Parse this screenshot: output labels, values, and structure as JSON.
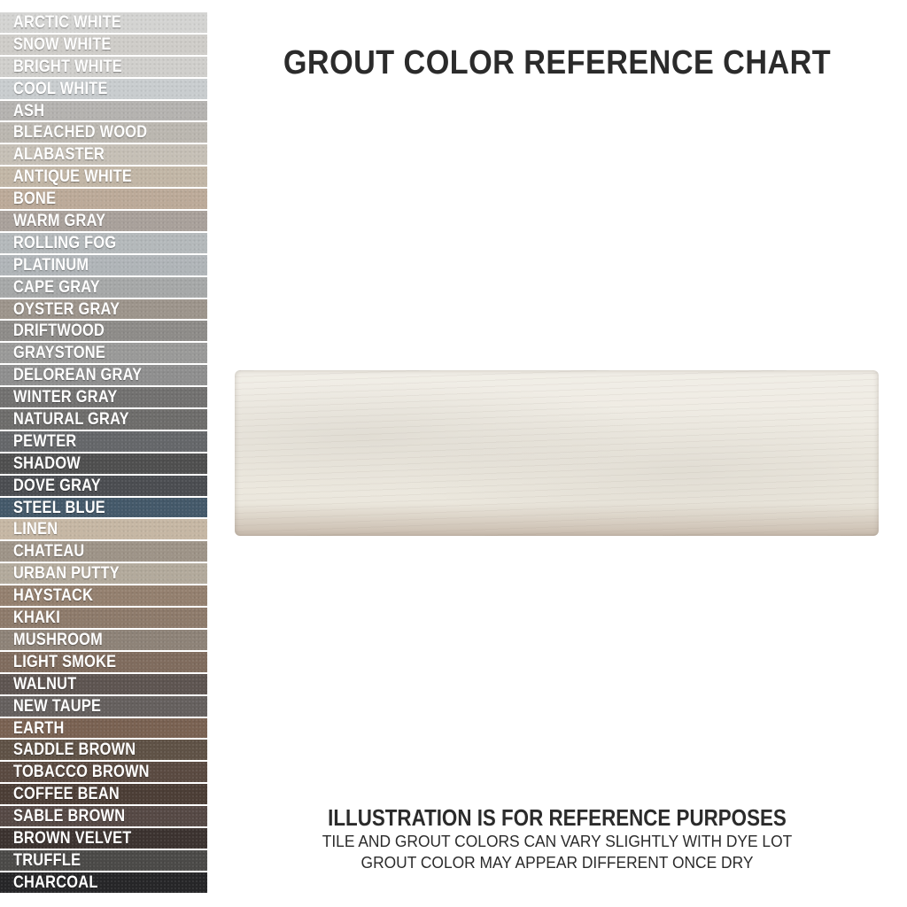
{
  "title": "GROUT COLOR REFERENCE CHART",
  "swatches": [
    {
      "name": "ARCTIC WHITE",
      "color": "#d4d4d2"
    },
    {
      "name": "SNOW WHITE",
      "color": "#cfcdc9"
    },
    {
      "name": "BRIGHT WHITE",
      "color": "#d0cfcc"
    },
    {
      "name": "COOL WHITE",
      "color": "#c9cdcf"
    },
    {
      "name": "ASH",
      "color": "#b5b3b0"
    },
    {
      "name": "BLEACHED WOOD",
      "color": "#bbb7b0"
    },
    {
      "name": "ALABASTER",
      "color": "#c6c0b6"
    },
    {
      "name": "ANTIQUE WHITE",
      "color": "#c2b6a6"
    },
    {
      "name": "BONE",
      "color": "#bcaa99"
    },
    {
      "name": "WARM GRAY",
      "color": "#a9a19b"
    },
    {
      "name": "ROLLING FOG",
      "color": "#b4b9bb"
    },
    {
      "name": "PLATINUM",
      "color": "#b0b5b8"
    },
    {
      "name": "CAPE GRAY",
      "color": "#a6a8a8"
    },
    {
      "name": "OYSTER GRAY",
      "color": "#9d958c"
    },
    {
      "name": "DRIFTWOOD",
      "color": "#8e8c89"
    },
    {
      "name": "GRAYSTONE",
      "color": "#9a9a99"
    },
    {
      "name": "DELOREAN GRAY",
      "color": "#8f8f8f"
    },
    {
      "name": "WINTER GRAY",
      "color": "#727170"
    },
    {
      "name": "NATURAL GRAY",
      "color": "#6e6d6b"
    },
    {
      "name": "PEWTER",
      "color": "#65676a"
    },
    {
      "name": "SHADOW",
      "color": "#4f4f4f"
    },
    {
      "name": "DOVE GRAY",
      "color": "#4b4d51"
    },
    {
      "name": "STEEL BLUE",
      "color": "#44596a"
    },
    {
      "name": "LINEN",
      "color": "#c6b7a4"
    },
    {
      "name": "CHATEAU",
      "color": "#9e9488"
    },
    {
      "name": "URBAN PUTTY",
      "color": "#b3aa9c"
    },
    {
      "name": "HAYSTACK",
      "color": "#94806f"
    },
    {
      "name": "KHAKI",
      "color": "#8e7b6b"
    },
    {
      "name": "MUSHROOM",
      "color": "#8e8378"
    },
    {
      "name": "LIGHT SMOKE",
      "color": "#806c5e"
    },
    {
      "name": "WALNUT",
      "color": "#5e5551"
    },
    {
      "name": "NEW TAUPE",
      "color": "#65605e"
    },
    {
      "name": "EARTH",
      "color": "#7a6252"
    },
    {
      "name": "SADDLE BROWN",
      "color": "#5f5246"
    },
    {
      "name": "TOBACCO BROWN",
      "color": "#5a4a41"
    },
    {
      "name": "COFFEE BEAN",
      "color": "#4c3e36"
    },
    {
      "name": "SABLE BROWN",
      "color": "#564945"
    },
    {
      "name": "BROWN VELVET",
      "color": "#3c3330"
    },
    {
      "name": "TRUFFLE",
      "color": "#4b4a48"
    },
    {
      "name": "CHARCOAL",
      "color": "#262628"
    }
  ],
  "tile": {
    "color": "#ede9e0"
  },
  "note": {
    "heading": "ILLUSTRATION IS FOR REFERENCE PURPOSES",
    "line1": "TILE AND GROUT COLORS CAN VARY SLIGHTLY WITH DYE LOT",
    "line2": "GROUT COLOR MAY APPEAR DIFFERENT ONCE DRY"
  }
}
